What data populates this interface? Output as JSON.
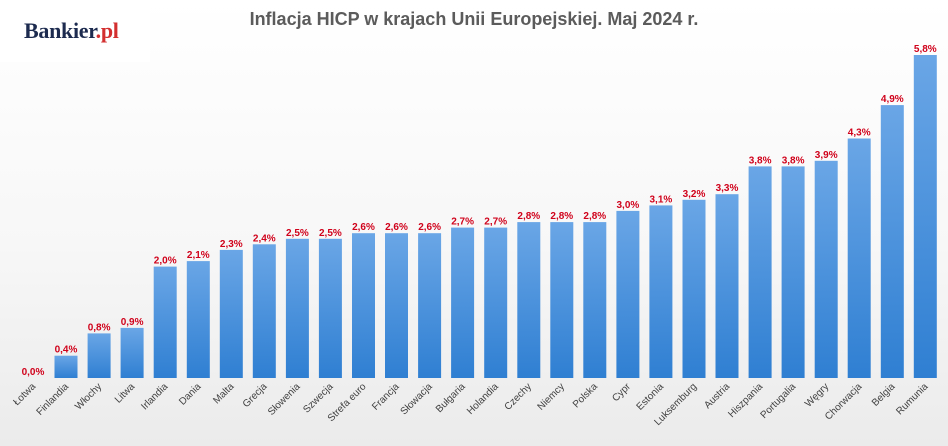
{
  "brand": {
    "name": "Bankier",
    "suffix": ".pl"
  },
  "chart_data": {
    "type": "bar",
    "title": "Inflacja HICP w krajach Unii Europejskiej. Maj 2024 r.",
    "xlabel": "",
    "ylabel": "",
    "ylim": [
      0,
      6
    ],
    "grid": false,
    "legend": "none",
    "categories": [
      "Łotwa",
      "Finlandia",
      "Włochy",
      "Litwa",
      "Irlandia",
      "Dania",
      "Malta",
      "Grecja",
      "Słowenia",
      "Szwecja",
      "Strefa euro",
      "Francja",
      "Słowacja",
      "Bułgaria",
      "Holandia",
      "Czechy",
      "Niemcy",
      "Polska",
      "Cypr",
      "Estonia",
      "Luksemburg",
      "Austria",
      "Hiszpania",
      "Portugalia",
      "Węgry",
      "Chorwacja",
      "Belgia",
      "Rumunia"
    ],
    "values": [
      0.0,
      0.4,
      0.8,
      0.9,
      2.0,
      2.1,
      2.3,
      2.4,
      2.5,
      2.5,
      2.6,
      2.6,
      2.6,
      2.7,
      2.7,
      2.8,
      2.8,
      2.8,
      3.0,
      3.1,
      3.2,
      3.3,
      3.8,
      3.8,
      3.9,
      4.3,
      4.9,
      5.8
    ],
    "value_labels": [
      "0,0%",
      "0,4%",
      "0,8%",
      "0,9%",
      "2,0%",
      "2,1%",
      "2,3%",
      "2,4%",
      "2,5%",
      "2,5%",
      "2,6%",
      "2,6%",
      "2,6%",
      "2,7%",
      "2,7%",
      "2,8%",
      "2,8%",
      "2,8%",
      "3,0%",
      "3,1%",
      "3,2%",
      "3,3%",
      "3,8%",
      "3,8%",
      "3,9%",
      "4,3%",
      "4,9%",
      "5,8%"
    ],
    "colors": {
      "bar_top": "#6aa6e6",
      "bar_bottom": "#2f7fd2",
      "label": "#d0021b"
    }
  }
}
